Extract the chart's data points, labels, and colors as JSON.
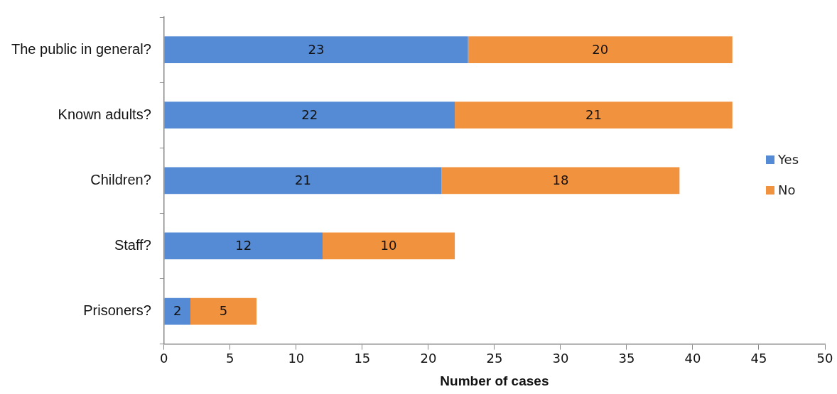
{
  "chart_data": {
    "type": "bar",
    "orientation": "horizontal",
    "stacked": true,
    "xlabel": "Number of cases",
    "categories": [
      "The public in general?",
      "Known adults?",
      "Children?",
      "Staff?",
      "Prisoners?"
    ],
    "series": [
      {
        "name": "Yes",
        "color": "#558ad4",
        "values": [
          23,
          22,
          21,
          12,
          2
        ]
      },
      {
        "name": "No",
        "color": "#f1923f",
        "values": [
          20,
          21,
          18,
          10,
          5
        ]
      }
    ],
    "xlim": [
      0,
      50
    ],
    "xticks": [
      0,
      5,
      10,
      15,
      20,
      25,
      30,
      35,
      40,
      45,
      50
    ],
    "grid": false,
    "legend": "right",
    "data_labels": true
  }
}
